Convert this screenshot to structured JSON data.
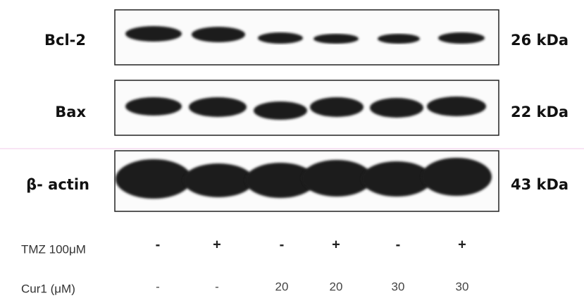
{
  "blots": [
    {
      "label": "Bcl-2",
      "size": "26 kDa"
    },
    {
      "label": "Bax",
      "size": "22 kDa"
    },
    {
      "label": "β- actin",
      "size": "43 kDa"
    }
  ],
  "treatments": [
    {
      "label": "TMZ 100μM",
      "lanes": [
        "-",
        "+",
        "-",
        "+",
        "-",
        "+"
      ]
    },
    {
      "label": "Cur1 (μM)",
      "lanes": [
        "-",
        "-",
        "20",
        "20",
        "30",
        "30"
      ]
    }
  ]
}
